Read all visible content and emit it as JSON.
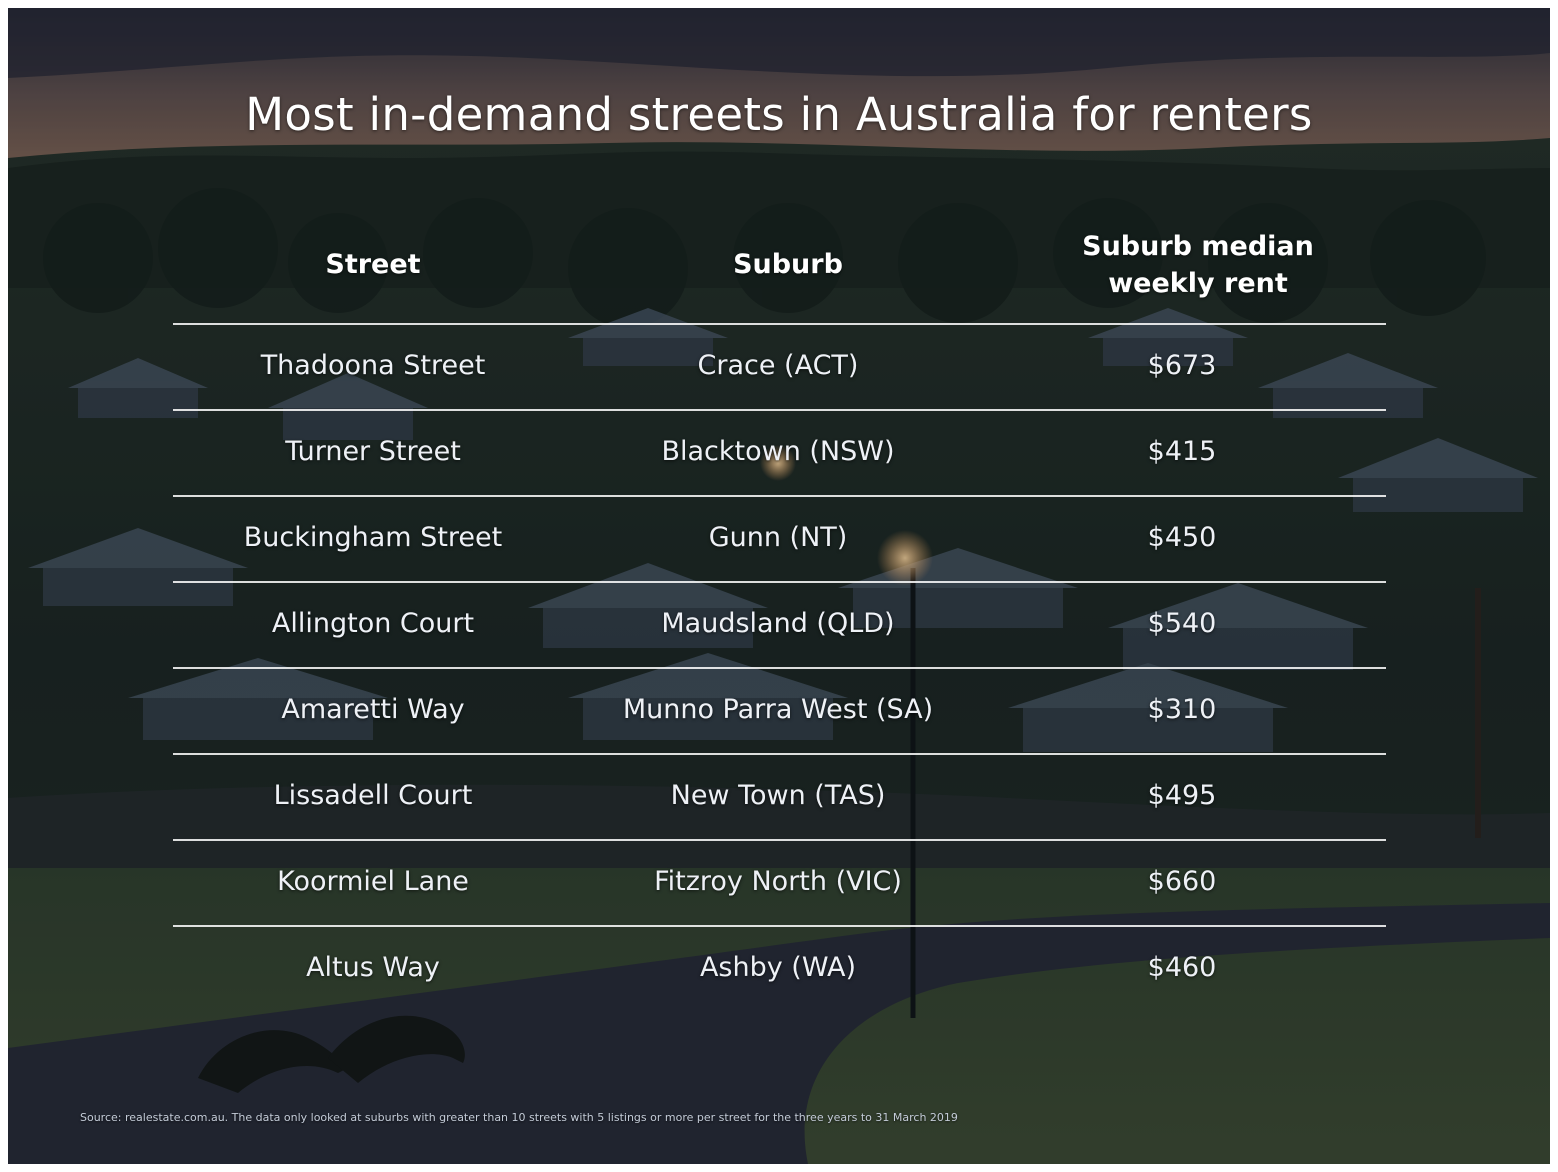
{
  "chart_data": {
    "type": "table",
    "title": "Most in-demand streets in Australia for renters",
    "columns": [
      "Street",
      "Suburb",
      "Suburb median weekly rent"
    ],
    "rent_header_lines": [
      "Suburb median",
      "weekly rent"
    ],
    "rows": [
      {
        "street": "Thadoona Street",
        "suburb": "Crace (ACT)",
        "rent": "$673"
      },
      {
        "street": "Turner Street",
        "suburb": "Blacktown (NSW)",
        "rent": "$415"
      },
      {
        "street": "Buckingham Street",
        "suburb": "Gunn (NT)",
        "rent": "$450"
      },
      {
        "street": "Allington Court",
        "suburb": "Maudsland (QLD)",
        "rent": "$540"
      },
      {
        "street": "Amaretti Way",
        "suburb": "Munno Parra West (SA)",
        "rent": "$310"
      },
      {
        "street": "Lissadell Court",
        "suburb": "New Town (TAS)",
        "rent": "$495"
      },
      {
        "street": "Koormiel Lane",
        "suburb": "Fitzroy North (VIC)",
        "rent": "$660"
      },
      {
        "street": "Altus Way",
        "suburb": "Ashby (WA)",
        "rent": "$460"
      }
    ],
    "source": "Source: realestate.com.au. The data only looked at suburbs with greater than 10 streets with 5 listings or more per street for the three years to 31 March 2019"
  },
  "colors": {
    "text": "#ffffff",
    "rule": "#ffffff",
    "sky_top": "#2b2c3a",
    "sky_glow": "#7a5a4a",
    "foliage": "#1c2a22",
    "roofs": "#3a4858",
    "road": "#262a35"
  }
}
